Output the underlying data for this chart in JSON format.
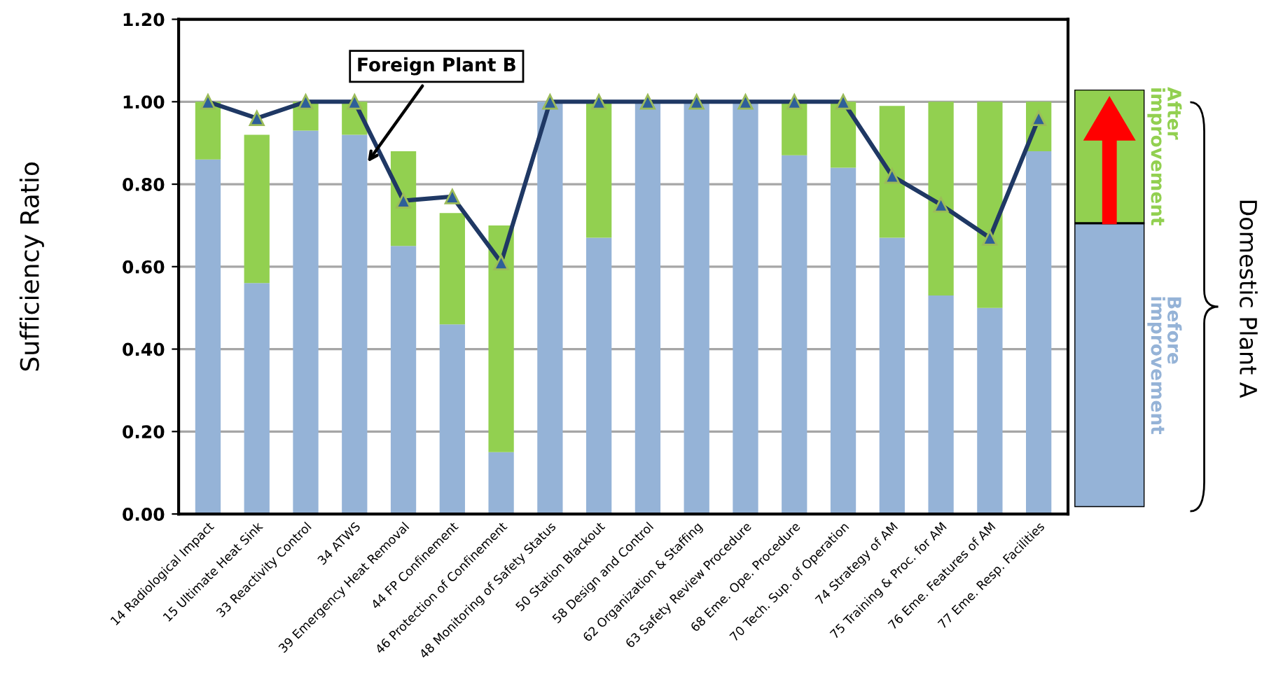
{
  "chart_data": {
    "type": "bar",
    "stacked": true,
    "ylabel": "Sufficiency Ratio",
    "legend": "right",
    "legend_title": "Domestic Plant A",
    "categories": [
      "14 Radiological Impact",
      "15 Ultimate Heat Sink",
      "33 Reactivity Control",
      "34 ATWS",
      "39 Emergency Heat Removal",
      "44 FP Confinement",
      "46 Protection of Confinement",
      "48 Monitoring of Safety Status",
      "50 Station Blackout",
      "58 Design and Control",
      "62 Organization & Staffing",
      "63 Safety Review Procedure",
      "68 Eme. Ope. Procedure",
      "70 Tech. Sup. of Operation",
      "74 Strategy of AM",
      "75 Training & Proc. for AM",
      "76 Eme. Features of AM",
      "77 Eme. Resp. Facilities"
    ],
    "series": [
      {
        "name": "Before improvement",
        "color": "#95b3d7",
        "values": [
          0.86,
          0.56,
          0.93,
          0.92,
          0.65,
          0.46,
          0.15,
          1.0,
          0.67,
          1.0,
          1.0,
          1.0,
          0.87,
          0.84,
          0.67,
          0.53,
          0.5,
          0.88
        ]
      },
      {
        "name": "After improvement",
        "color": "#92d050",
        "values": [
          0.14,
          0.36,
          0.07,
          0.08,
          0.23,
          0.27,
          0.55,
          0.0,
          0.33,
          0.0,
          0.0,
          0.0,
          0.13,
          0.16,
          0.32,
          0.47,
          0.5,
          0.12
        ]
      },
      {
        "name": "Foreign Plant B",
        "type": "line",
        "color": "#1f3864",
        "marker": "triangle",
        "values": [
          1.0,
          0.96,
          1.0,
          1.0,
          0.76,
          0.77,
          0.61,
          1.0,
          1.0,
          1.0,
          1.0,
          1.0,
          1.0,
          1.0,
          0.82,
          0.75,
          0.67,
          0.96
        ]
      }
    ],
    "ylim": [
      0,
      1.2
    ],
    "yticks": [
      {
        "value": 0,
        "label": "0.00"
      },
      {
        "value": 0.2,
        "label": "0.20"
      },
      {
        "value": 0.4,
        "label": "0.40"
      },
      {
        "value": 0.6,
        "label": "0.60"
      },
      {
        "value": 0.8,
        "label": "0.80"
      },
      {
        "value": 1.0,
        "label": "1.00"
      },
      {
        "value": 1.2,
        "label": "1.20"
      }
    ],
    "grid": "y"
  }
}
